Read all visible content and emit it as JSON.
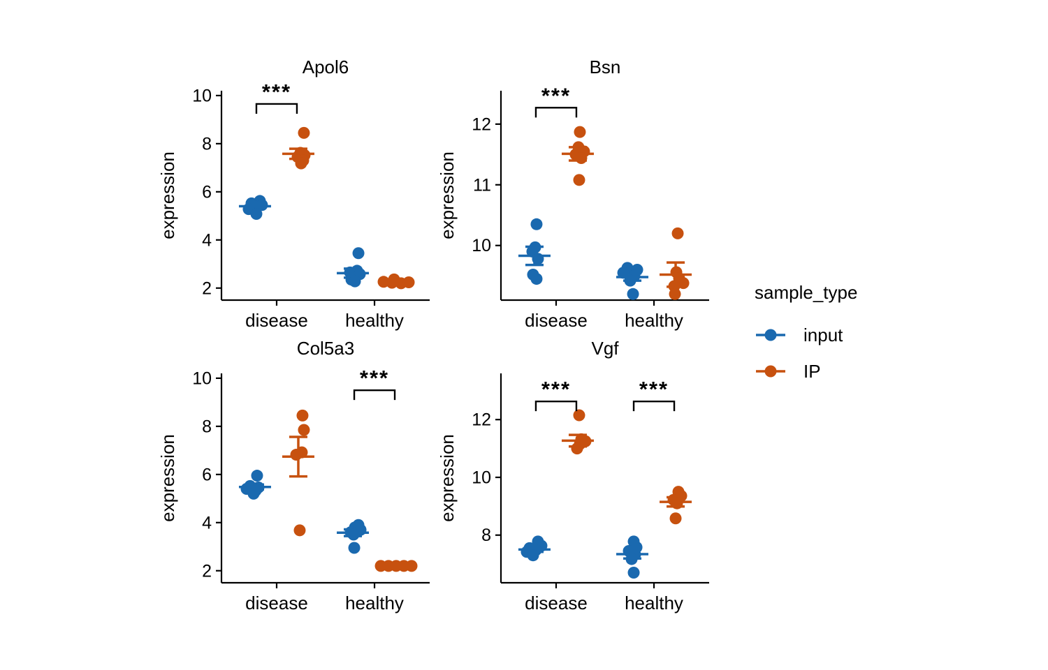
{
  "figure": {
    "background": "#ffffff"
  },
  "legend": {
    "title": "sample_type",
    "entries": [
      {
        "label": "input",
        "color": "#1a69af"
      },
      {
        "label": "IP",
        "color": "#c7510f"
      }
    ]
  },
  "chart_data": {
    "type": "scatter",
    "description": "2x2 faceted jitter-dot plot of gene expression with mean +/- SEM pointranges and significance brackets",
    "categories": [
      "disease",
      "healthy"
    ],
    "series_names": [
      "input",
      "IP"
    ],
    "facets": [
      {
        "title": "Apol6",
        "ylabel": "expression",
        "yticks": [
          2,
          4,
          6,
          8,
          10
        ],
        "ylim": [
          1.5,
          10.2
        ],
        "groups": [
          {
            "series": [
              {
                "name": "input",
                "mean": 5.4,
                "se": 0.08,
                "points": [
                  {
                    "v": 5.62,
                    "j": 7
                  },
                  {
                    "v": 5.52,
                    "j": -5
                  },
                  {
                    "v": 5.45,
                    "j": 10
                  },
                  {
                    "v": 5.38,
                    "j": 1
                  },
                  {
                    "v": 5.28,
                    "j": -9
                  },
                  {
                    "v": 5.08,
                    "j": 2
                  }
                ]
              },
              {
                "name": "IP",
                "mean": 7.58,
                "se": 0.21,
                "points": [
                  {
                    "v": 8.45,
                    "j": 8
                  },
                  {
                    "v": 7.62,
                    "j": 3
                  },
                  {
                    "v": 7.52,
                    "j": 9
                  },
                  {
                    "v": 7.45,
                    "j": -1
                  },
                  {
                    "v": 7.3,
                    "j": 7
                  },
                  {
                    "v": 7.18,
                    "j": 4
                  }
                ]
              }
            ]
          },
          {
            "series": [
              {
                "name": "input",
                "mean": 2.62,
                "se": 0.19,
                "points": [
                  {
                    "v": 3.45,
                    "j": 8
                  },
                  {
                    "v": 2.72,
                    "j": 6
                  },
                  {
                    "v": 2.65,
                    "j": -4
                  },
                  {
                    "v": 2.58,
                    "j": 10
                  },
                  {
                    "v": 2.35,
                    "j": -2
                  },
                  {
                    "v": 2.28,
                    "j": 3
                  }
                ]
              },
              {
                "name": "IP",
                "mean": 2.26,
                "se": 0.03,
                "points": [
                  {
                    "v": 2.36,
                    "j": -3
                  },
                  {
                    "v": 2.26,
                    "j": -18
                  },
                  {
                    "v": 2.22,
                    "j": -6
                  },
                  {
                    "v": 2.2,
                    "j": 7
                  },
                  {
                    "v": 2.24,
                    "j": 18
                  }
                ]
              }
            ]
          }
        ],
        "significance": [
          {
            "category": "disease",
            "label": "***",
            "y": 9.65
          }
        ]
      },
      {
        "title": "Bsn",
        "ylabel": "expression",
        "yticks": [
          10,
          11,
          12
        ],
        "ylim": [
          9.1,
          12.55
        ],
        "groups": [
          {
            "series": [
              {
                "name": "input",
                "mean": 9.83,
                "se": 0.15,
                "points": [
                  {
                    "v": 10.35,
                    "j": 3
                  },
                  {
                    "v": 9.97,
                    "j": 1
                  },
                  {
                    "v": 9.9,
                    "j": -3
                  },
                  {
                    "v": 9.78,
                    "j": 5
                  },
                  {
                    "v": 9.52,
                    "j": -2
                  },
                  {
                    "v": 9.45,
                    "j": 3
                  }
                ]
              },
              {
                "name": "IP",
                "mean": 11.51,
                "se": 0.11,
                "points": [
                  {
                    "v": 11.87,
                    "j": 3
                  },
                  {
                    "v": 11.62,
                    "j": 1
                  },
                  {
                    "v": 11.55,
                    "j": 9
                  },
                  {
                    "v": 11.5,
                    "j": -3
                  },
                  {
                    "v": 11.44,
                    "j": 5
                  },
                  {
                    "v": 11.08,
                    "j": 2
                  }
                ]
              }
            ]
          },
          {
            "series": [
              {
                "name": "input",
                "mean": 9.48,
                "se": 0.06,
                "points": [
                  {
                    "v": 9.63,
                    "j": -7
                  },
                  {
                    "v": 9.6,
                    "j": 7
                  },
                  {
                    "v": 9.55,
                    "j": -13
                  },
                  {
                    "v": 9.5,
                    "j": 3
                  },
                  {
                    "v": 9.42,
                    "j": -3
                  },
                  {
                    "v": 9.2,
                    "j": 1
                  }
                ]
              },
              {
                "name": "IP",
                "mean": 9.52,
                "se": 0.2,
                "points": [
                  {
                    "v": 10.2,
                    "j": 3
                  },
                  {
                    "v": 9.56,
                    "j": 1
                  },
                  {
                    "v": 9.46,
                    "j": 5
                  },
                  {
                    "v": 9.38,
                    "j": 11
                  },
                  {
                    "v": 9.33,
                    "j": -2
                  },
                  {
                    "v": 9.2,
                    "j": -1
                  }
                ]
              }
            ]
          }
        ],
        "significance": [
          {
            "category": "disease",
            "label": "***",
            "y": 12.27
          }
        ]
      },
      {
        "title": "Col5a3",
        "ylabel": "expression",
        "yticks": [
          2,
          4,
          6,
          8,
          10
        ],
        "ylim": [
          1.5,
          10.2
        ],
        "groups": [
          {
            "series": [
              {
                "name": "input",
                "mean": 5.48,
                "se": 0.1,
                "points": [
                  {
                    "v": 5.95,
                    "j": 3
                  },
                  {
                    "v": 5.52,
                    "j": -7
                  },
                  {
                    "v": 5.46,
                    "j": 5
                  },
                  {
                    "v": 5.4,
                    "j": -12
                  },
                  {
                    "v": 5.33,
                    "j": 1
                  },
                  {
                    "v": 5.2,
                    "j": -2
                  }
                ]
              },
              {
                "name": "IP",
                "mean": 6.74,
                "se": 0.82,
                "points": [
                  {
                    "v": 8.45,
                    "j": 6
                  },
                  {
                    "v": 7.85,
                    "j": 8
                  },
                  {
                    "v": 6.92,
                    "j": 5
                  },
                  {
                    "v": 6.82,
                    "j": -3
                  },
                  {
                    "v": 3.68,
                    "j": 2
                  }
                ]
              }
            ]
          },
          {
            "series": [
              {
                "name": "input",
                "mean": 3.58,
                "se": 0.14,
                "points": [
                  {
                    "v": 3.9,
                    "j": 8
                  },
                  {
                    "v": 3.8,
                    "j": 3
                  },
                  {
                    "v": 3.7,
                    "j": 11
                  },
                  {
                    "v": 3.6,
                    "j": -3
                  },
                  {
                    "v": 3.5,
                    "j": 1
                  },
                  {
                    "v": 2.95,
                    "j": 2
                  }
                ]
              },
              {
                "name": "IP",
                "mean": 2.2,
                "se": 0.02,
                "points": [
                  {
                    "v": 2.2,
                    "j": -22
                  },
                  {
                    "v": 2.2,
                    "j": -11
                  },
                  {
                    "v": 2.2,
                    "j": 0
                  },
                  {
                    "v": 2.2,
                    "j": 11
                  },
                  {
                    "v": 2.2,
                    "j": 22
                  }
                ]
              }
            ]
          }
        ],
        "significance": [
          {
            "category": "healthy",
            "label": "***",
            "y": 9.5
          }
        ]
      },
      {
        "title": "Vgf",
        "ylabel": "expression",
        "yticks": [
          8,
          10,
          12
        ],
        "ylim": [
          6.35,
          13.6
        ],
        "groups": [
          {
            "series": [
              {
                "name": "input",
                "mean": 7.5,
                "se": 0.08,
                "points": [
                  {
                    "v": 7.78,
                    "j": 5
                  },
                  {
                    "v": 7.63,
                    "j": 10
                  },
                  {
                    "v": 7.55,
                    "j": -7
                  },
                  {
                    "v": 7.48,
                    "j": 2
                  },
                  {
                    "v": 7.42,
                    "j": -11
                  },
                  {
                    "v": 7.3,
                    "j": -2
                  }
                ]
              },
              {
                "name": "IP",
                "mean": 11.27,
                "se": 0.2,
                "points": [
                  {
                    "v": 12.15,
                    "j": 2
                  },
                  {
                    "v": 11.32,
                    "j": 5
                  },
                  {
                    "v": 11.25,
                    "j": 11
                  },
                  {
                    "v": 11.15,
                    "j": 3
                  },
                  {
                    "v": 11.0,
                    "j": -1
                  }
                ]
              }
            ]
          },
          {
            "series": [
              {
                "name": "input",
                "mean": 7.34,
                "se": 0.15,
                "points": [
                  {
                    "v": 7.78,
                    "j": 2
                  },
                  {
                    "v": 7.58,
                    "j": 6
                  },
                  {
                    "v": 7.45,
                    "j": -5
                  },
                  {
                    "v": 7.33,
                    "j": 4
                  },
                  {
                    "v": 7.17,
                    "j": -1
                  },
                  {
                    "v": 6.7,
                    "j": 2
                  }
                ]
              },
              {
                "name": "IP",
                "mean": 9.15,
                "se": 0.16,
                "points": [
                  {
                    "v": 9.5,
                    "j": 4
                  },
                  {
                    "v": 9.36,
                    "j": 8
                  },
                  {
                    "v": 9.22,
                    "j": -3
                  },
                  {
                    "v": 9.1,
                    "j": 2
                  },
                  {
                    "v": 8.58,
                    "j": 0
                  }
                ]
              }
            ]
          }
        ],
        "significance": [
          {
            "category": "disease",
            "label": "***",
            "y": 12.63
          },
          {
            "category": "healthy",
            "label": "***",
            "y": 12.63
          }
        ]
      }
    ]
  }
}
